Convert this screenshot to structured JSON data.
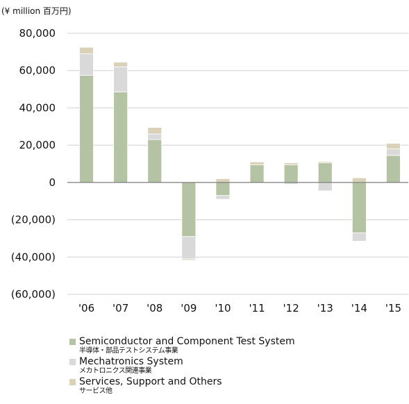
{
  "chart_data": {
    "type": "bar",
    "stacked": true,
    "unit_label": "(¥ million  百万円)",
    "categories": [
      "'06",
      "'07",
      "'08",
      "'09",
      "'10",
      "'11",
      "'12",
      "'13",
      "'14",
      "'15"
    ],
    "y_ticks": [
      "80,000",
      "60,000",
      "40,000",
      "20,000",
      "0",
      "(20,000)",
      "(40,000)",
      "(60,000)"
    ],
    "ylim": [
      -60000,
      80000
    ],
    "grid": "horizontal",
    "legend_position": "bottom-left",
    "series": [
      {
        "name": "Semiconductor and Component Test System",
        "name_ja": "半導体・部品テストシステム事業",
        "color": "#b4c3a4",
        "values": [
          57500,
          48500,
          23000,
          -29000,
          -7000,
          9500,
          9500,
          10500,
          -27000,
          14500
        ]
      },
      {
        "name": "Mechatronics System",
        "name_ja": "メカトロニクス関連事業",
        "color": "#d9d9d9",
        "values": [
          11500,
          13500,
          3000,
          -12000,
          -2000,
          0,
          -1000,
          -4500,
          -4500,
          3500
        ]
      },
      {
        "name": "Services, Support and Others",
        "name_ja": "サービス他",
        "color": "#d9d2b8",
        "values": [
          3500,
          2500,
          3500,
          -700,
          2000,
          1500,
          1000,
          700,
          2500,
          3000
        ]
      }
    ]
  }
}
